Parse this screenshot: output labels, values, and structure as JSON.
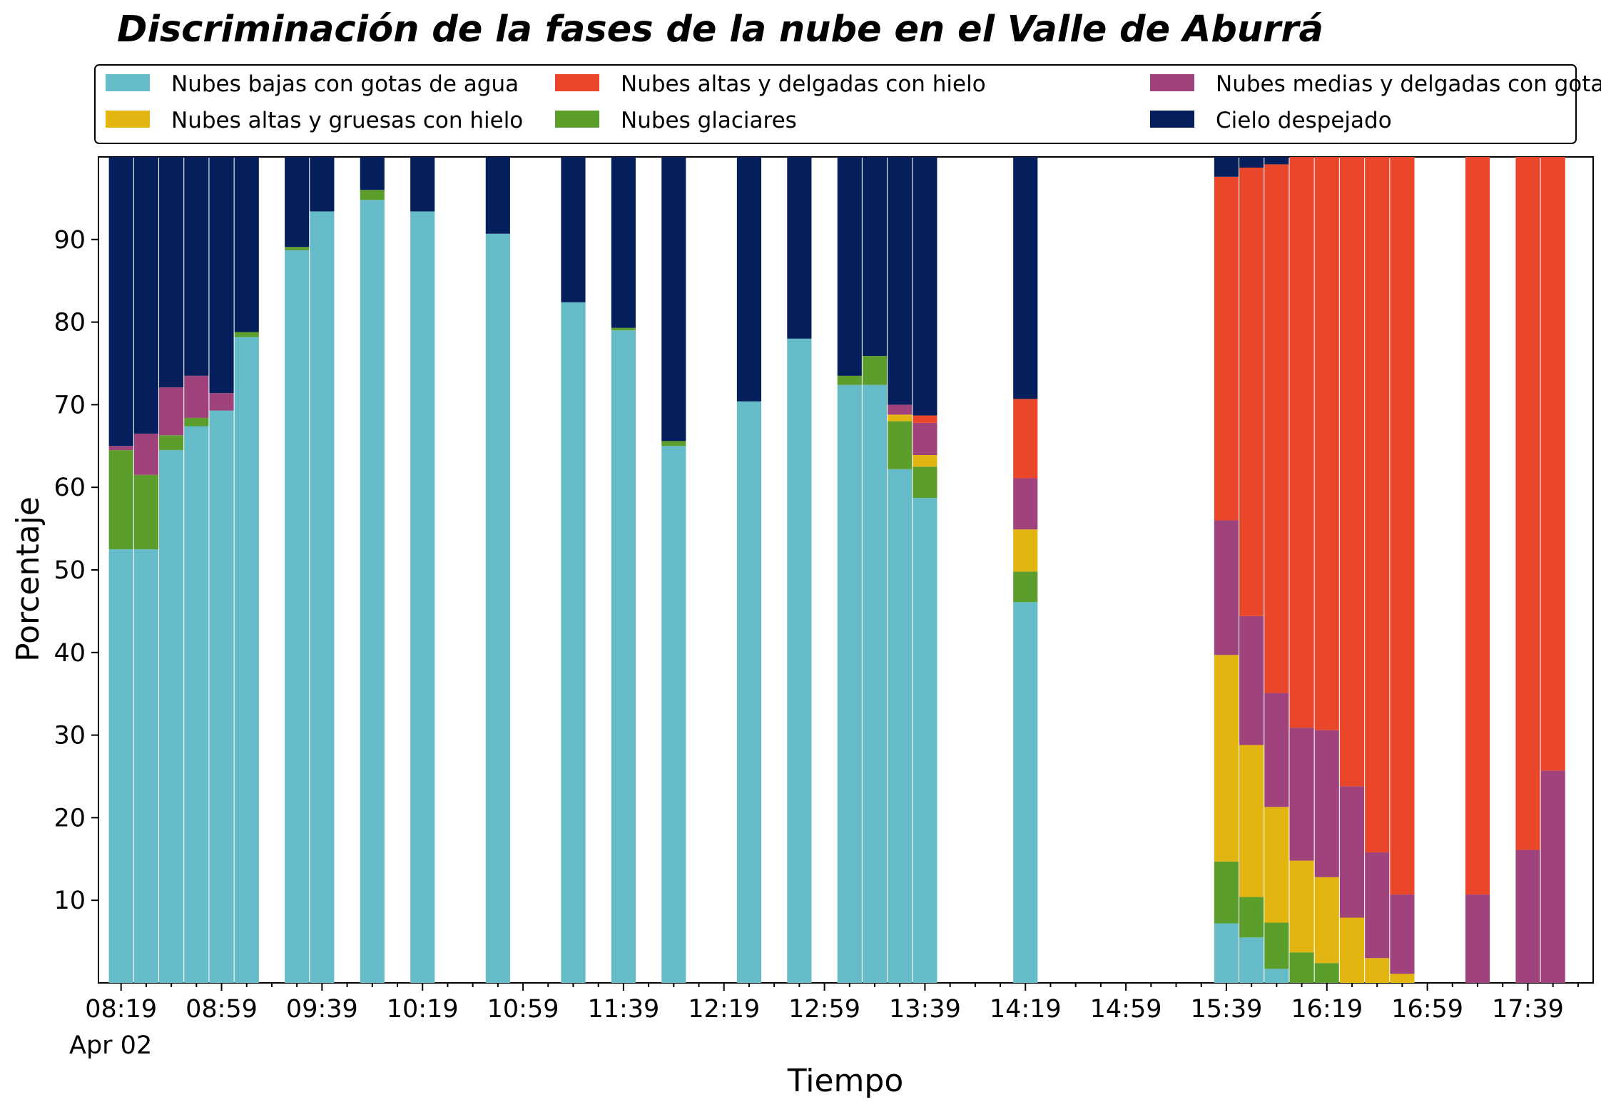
{
  "chart_data": {
    "type": "bar",
    "stacked": true,
    "title": "Discriminación de la fases de la nube en el Valle de Aburrá",
    "xlabel": "Tiempo",
    "ylabel": "Porcentaje",
    "ylim": [
      0,
      100
    ],
    "yticks": [
      10,
      20,
      30,
      40,
      50,
      60,
      70,
      80,
      90
    ],
    "xlim": [
      "08:10",
      "18:05"
    ],
    "date_label": "Apr 02",
    "xticks": [
      "08:19",
      "08:59",
      "09:39",
      "10:19",
      "10:59",
      "11:39",
      "12:19",
      "12:59",
      "13:39",
      "14:19",
      "14:59",
      "15:39",
      "16:19",
      "16:59",
      "17:39"
    ],
    "legend_position": "top, 3 columns",
    "series": [
      {
        "name": "Nubes bajas con gotas de agua",
        "color": "#65BCC8"
      },
      {
        "name": "Nubes glaciares",
        "color": "#5C9E2C"
      },
      {
        "name": "Nubes altas y gruesas con hielo",
        "color": "#E3B511"
      },
      {
        "name": "Nubes medias y delgadas con gotas de agua",
        "color": "#A0427B"
      },
      {
        "name": "Nubes altas y delgadas con hielo",
        "color": "#EA472A"
      },
      {
        "name": "Cielo despejado",
        "color": "#041F5B"
      }
    ],
    "legend_order": [
      0,
      2,
      4,
      1,
      3,
      5
    ],
    "bars": [
      {
        "time": "08:19",
        "values": [
          52.5,
          12.0,
          0,
          0.5,
          0,
          35.0
        ]
      },
      {
        "time": "08:29",
        "values": [
          52.5,
          9.0,
          0,
          5.0,
          0,
          33.5
        ]
      },
      {
        "time": "08:39",
        "values": [
          64.5,
          1.8,
          0,
          5.8,
          0,
          27.9
        ]
      },
      {
        "time": "08:49",
        "values": [
          67.4,
          1.0,
          0,
          5.1,
          0,
          26.5
        ]
      },
      {
        "time": "08:59",
        "values": [
          69.3,
          0,
          0,
          2.1,
          0,
          28.6
        ]
      },
      {
        "time": "09:09",
        "values": [
          78.2,
          0.6,
          0,
          0,
          0,
          21.2
        ]
      },
      {
        "time": "09:29",
        "values": [
          88.7,
          0.4,
          0,
          0,
          0,
          10.9
        ]
      },
      {
        "time": "09:39",
        "values": [
          93.4,
          0,
          0,
          0,
          0,
          6.6
        ]
      },
      {
        "time": "09:59",
        "values": [
          94.8,
          1.2,
          0,
          0,
          0,
          4.0
        ]
      },
      {
        "time": "10:19",
        "values": [
          93.4,
          0,
          0,
          0,
          0,
          6.6
        ]
      },
      {
        "time": "10:49",
        "values": [
          90.7,
          0,
          0,
          0,
          0,
          9.3
        ]
      },
      {
        "time": "11:19",
        "values": [
          82.4,
          0,
          0,
          0,
          0,
          17.6
        ]
      },
      {
        "time": "11:39",
        "values": [
          79.0,
          0.3,
          0,
          0,
          0,
          20.7
        ]
      },
      {
        "time": "11:59",
        "values": [
          65.0,
          0.6,
          0,
          0,
          0,
          34.4
        ]
      },
      {
        "time": "12:29",
        "values": [
          70.4,
          0,
          0,
          0,
          0,
          29.6
        ]
      },
      {
        "time": "12:49",
        "values": [
          78.0,
          0,
          0,
          0,
          0,
          22.0
        ]
      },
      {
        "time": "13:09",
        "values": [
          72.4,
          1.1,
          0,
          0,
          0,
          26.5
        ]
      },
      {
        "time": "13:19",
        "values": [
          72.4,
          3.5,
          0,
          0,
          0,
          24.1
        ]
      },
      {
        "time": "13:29",
        "values": [
          62.2,
          5.8,
          0.8,
          1.2,
          0,
          30.0
        ]
      },
      {
        "time": "13:39",
        "values": [
          58.7,
          3.8,
          1.4,
          3.9,
          0.9,
          31.3
        ]
      },
      {
        "time": "14:19",
        "values": [
          46.1,
          3.7,
          5.1,
          6.2,
          9.6,
          29.3
        ]
      },
      {
        "time": "15:39",
        "values": [
          7.2,
          7.5,
          25.0,
          16.3,
          41.6,
          2.4
        ]
      },
      {
        "time": "15:49",
        "values": [
          5.5,
          4.9,
          18.4,
          15.6,
          54.3,
          1.3
        ]
      },
      {
        "time": "15:59",
        "values": [
          1.7,
          5.6,
          14.0,
          13.8,
          64.0,
          0.9
        ]
      },
      {
        "time": "16:09",
        "values": [
          0,
          3.7,
          11.1,
          16.1,
          69.1,
          0
        ]
      },
      {
        "time": "16:19",
        "values": [
          0,
          2.4,
          10.4,
          17.8,
          69.4,
          0
        ]
      },
      {
        "time": "16:29",
        "values": [
          0,
          0,
          7.9,
          15.9,
          76.2,
          0
        ]
      },
      {
        "time": "16:39",
        "values": [
          0,
          0,
          3.0,
          12.8,
          84.2,
          0
        ]
      },
      {
        "time": "16:49",
        "values": [
          0,
          0,
          1.1,
          9.6,
          89.3,
          0
        ]
      },
      {
        "time": "17:19",
        "values": [
          0,
          0,
          0,
          10.7,
          89.3,
          0
        ]
      },
      {
        "time": "17:39",
        "values": [
          0,
          0,
          0,
          16.1,
          83.9,
          0
        ]
      },
      {
        "time": "17:49",
        "values": [
          0,
          0,
          0,
          25.7,
          74.3,
          0
        ]
      }
    ]
  }
}
